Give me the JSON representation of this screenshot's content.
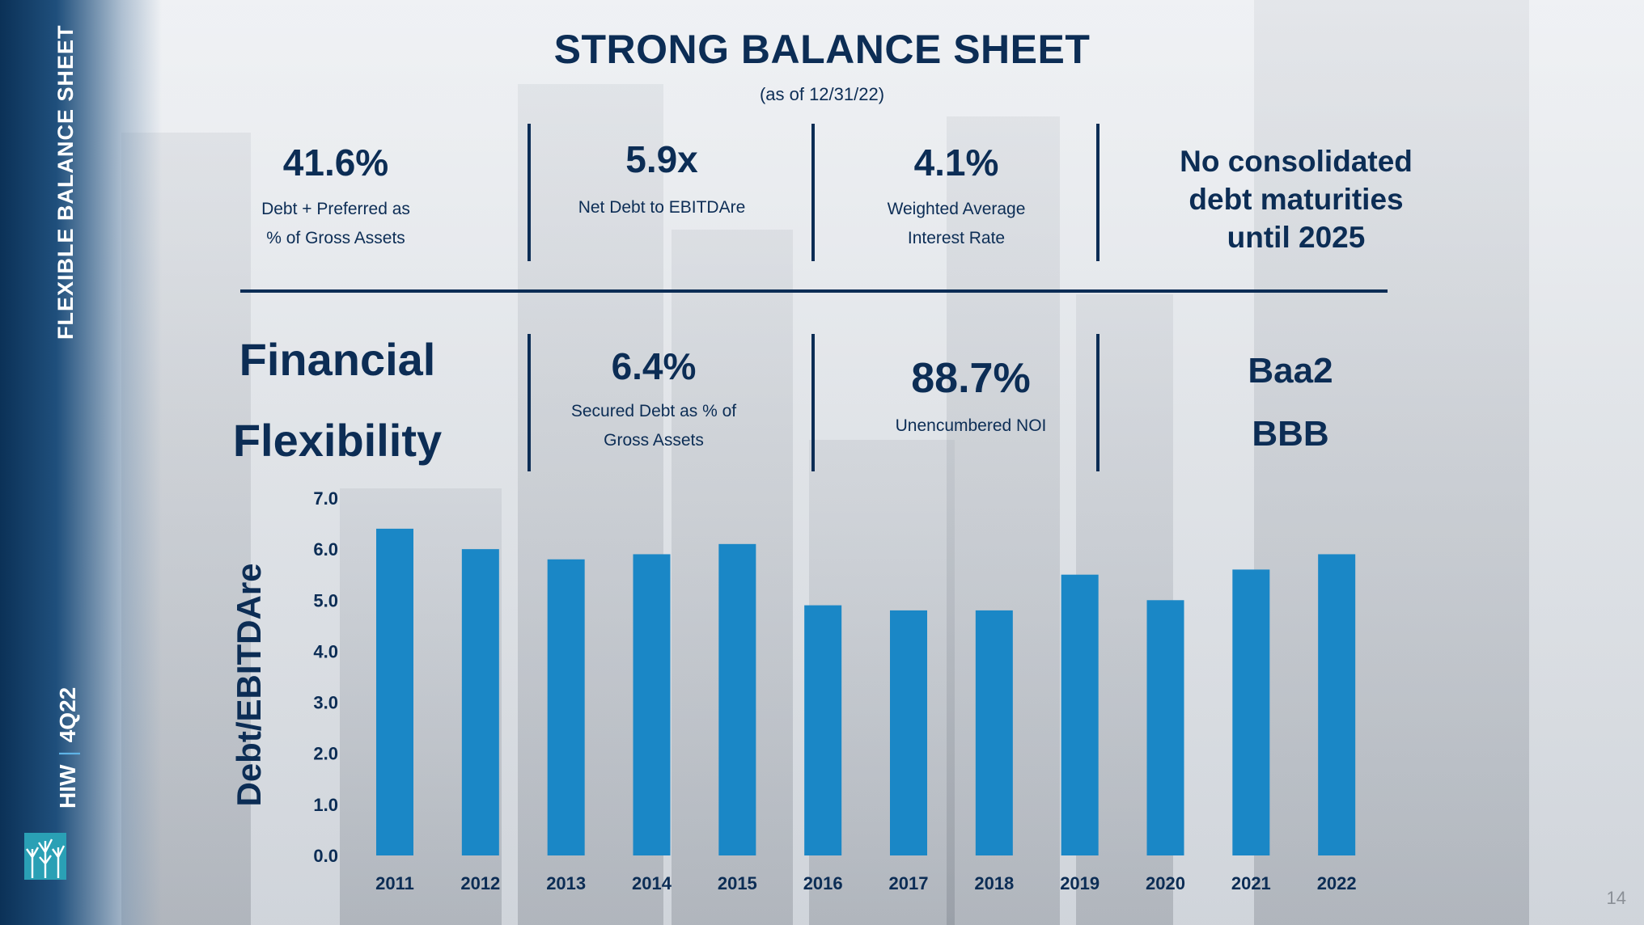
{
  "sidebar": {
    "title": "FLEXIBLE BALANCE SHEET",
    "ticker": "HIW",
    "period": "4Q22",
    "separator": "|"
  },
  "header": {
    "title": "STRONG BALANCE SHEET",
    "subtitle": "(as of 12/31/22)"
  },
  "top_stats": [
    {
      "value": "41.6%",
      "line1": "Debt + Preferred as",
      "line2": "% of Gross Assets"
    },
    {
      "value": "5.9x",
      "line1": "Net Debt to EBITDAre",
      "line2": ""
    },
    {
      "value": "4.1%",
      "line1": "Weighted Average",
      "line2": "Interest Rate"
    }
  ],
  "maturity_note": {
    "line1": "No consolidated",
    "line2": "debt maturities",
    "line3": "until 2025"
  },
  "financial_flexibility": {
    "line1": "Financial",
    "line2": "Flexibility"
  },
  "bottom_stats": [
    {
      "value": "6.4%",
      "line1": "Secured Debt as % of",
      "line2": "Gross Assets"
    },
    {
      "value": "88.7%",
      "line1": "Unencumbered NOI",
      "line2": ""
    }
  ],
  "ratings": {
    "moodys": "Baa2",
    "sp": "BBB"
  },
  "chart_data": {
    "type": "bar",
    "title": "",
    "xlabel": "",
    "ylabel": "Debt/EBITDAre",
    "categories": [
      "2011",
      "2012",
      "2013",
      "2014",
      "2015",
      "2016",
      "2017",
      "2018",
      "2019",
      "2020",
      "2021",
      "2022"
    ],
    "values": [
      6.4,
      6.0,
      5.8,
      5.9,
      6.1,
      4.9,
      4.8,
      4.8,
      5.5,
      5.0,
      5.6,
      5.9
    ],
    "ylim": [
      0,
      7
    ],
    "yticks": [
      "0.0",
      "1.0",
      "2.0",
      "3.0",
      "4.0",
      "5.0",
      "6.0",
      "7.0"
    ],
    "bar_color": "#1a87c6",
    "grid": false,
    "legend": "none"
  },
  "page_number": "14",
  "colors": {
    "navy": "#0c2d55",
    "bar": "#1a87c6",
    "accent": "#5fb3e6"
  }
}
